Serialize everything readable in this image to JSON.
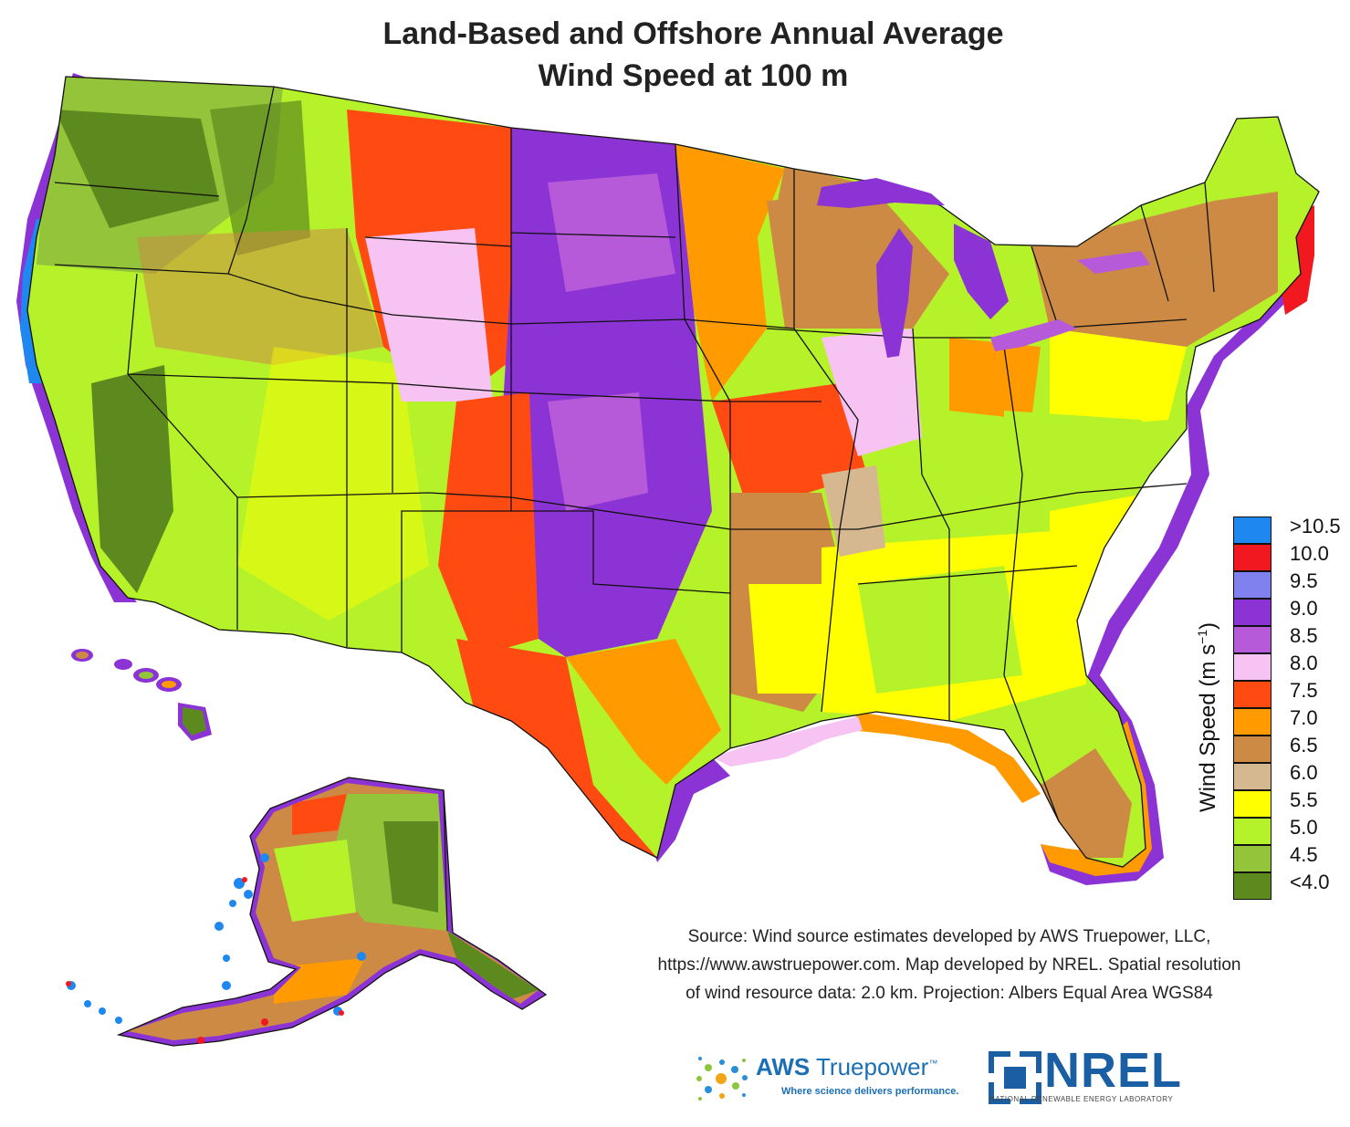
{
  "title": {
    "line1": "Land-Based and Offshore Annual Average",
    "line2": "Wind Speed at 100 m"
  },
  "legend": {
    "title_main": "Wind Speed (m s",
    "title_sup": "−1",
    "title_close": ")",
    "entries": [
      {
        "label": ">10.5",
        "color": "#1e88f0"
      },
      {
        "label": "10.0",
        "color": "#f2181f"
      },
      {
        "label": "9.5",
        "color": "#8080ee"
      },
      {
        "label": "9.0",
        "color": "#8c33d6"
      },
      {
        "label": "8.5",
        "color": "#b65ad9"
      },
      {
        "label": "8.0",
        "color": "#f6c3f2"
      },
      {
        "label": "7.5",
        "color": "#ff4a12"
      },
      {
        "label": "7.0",
        "color": "#ff9a00"
      },
      {
        "label": "6.5",
        "color": "#cc8a44"
      },
      {
        "label": "6.0",
        "color": "#d6b890"
      },
      {
        "label": "5.5",
        "color": "#ffff00"
      },
      {
        "label": "5.0",
        "color": "#b6f22a"
      },
      {
        "label": "4.5",
        "color": "#93c43a"
      },
      {
        "label": "<4.0",
        "color": "#5c8a1e"
      }
    ]
  },
  "source": {
    "line1": "Source: Wind source estimates developed by AWS Truepower, LLC,",
    "line2": "https://www.awstruepower.com. Map developed by NREL. Spatial resolution",
    "line3": "of wind resource data: 2.0 km. Projection: Albers Equal Area WGS84"
  },
  "logos": {
    "aws_bold": "AWS",
    "aws_light": " Truepower",
    "aws_tm": "™",
    "aws_tagline": "Where science delivers performance.",
    "nrel_name": "NREL",
    "nrel_tagline": "NATIONAL RENEWABLE ENERGY LABORATORY"
  }
}
